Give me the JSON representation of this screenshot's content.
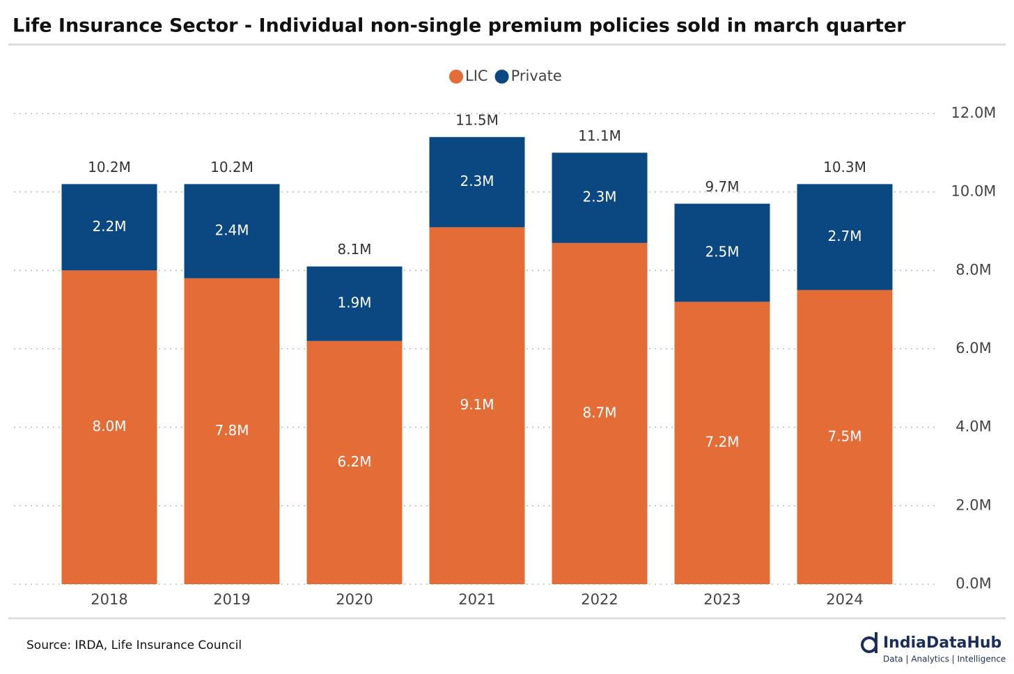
{
  "chart_data": {
    "type": "stacked_bar",
    "title": "Life Insurance Sector - Individual non-single premium policies sold in march quarter",
    "categories": [
      "2018",
      "2019",
      "2020",
      "2021",
      "2022",
      "2023",
      "2024"
    ],
    "series": [
      {
        "name": "LIC",
        "color": "#e46c37",
        "values": [
          8.0,
          7.8,
          6.2,
          9.1,
          8.7,
          7.2,
          7.5
        ],
        "value_labels": [
          "8.0M",
          "7.8M",
          "6.2M",
          "9.1M",
          "8.7M",
          "7.2M",
          "7.5M"
        ]
      },
      {
        "name": "Private",
        "color": "#0b4882",
        "values": [
          2.2,
          2.4,
          1.9,
          2.3,
          2.3,
          2.5,
          2.7
        ],
        "value_labels": [
          "2.2M",
          "2.4M",
          "1.9M",
          "2.3M",
          "2.3M",
          "2.5M",
          "2.7M"
        ]
      }
    ],
    "totals": {
      "values": [
        10.2,
        10.2,
        8.1,
        11.5,
        11.1,
        9.7,
        10.3
      ],
      "value_labels": [
        "10.2M",
        "10.2M",
        "8.1M",
        "11.5M",
        "11.1M",
        "9.7M",
        "10.3M"
      ]
    },
    "ylim": [
      0,
      12
    ],
    "yticks": [
      {
        "value": 0,
        "label": "0.0M"
      },
      {
        "value": 2,
        "label": "2.0M"
      },
      {
        "value": 4,
        "label": "4.0M"
      },
      {
        "value": 6,
        "label": "6.0M"
      },
      {
        "value": 8,
        "label": "8.0M"
      },
      {
        "value": 10,
        "label": "10.0M"
      },
      {
        "value": 12,
        "label": "12.0M"
      }
    ],
    "grid": true,
    "legend": "top",
    "source": "Source: IRDA, Life Insurance Council",
    "brand": {
      "name": "IndiaDataHub",
      "tagline": "Data | Analytics | Intelligence"
    }
  }
}
